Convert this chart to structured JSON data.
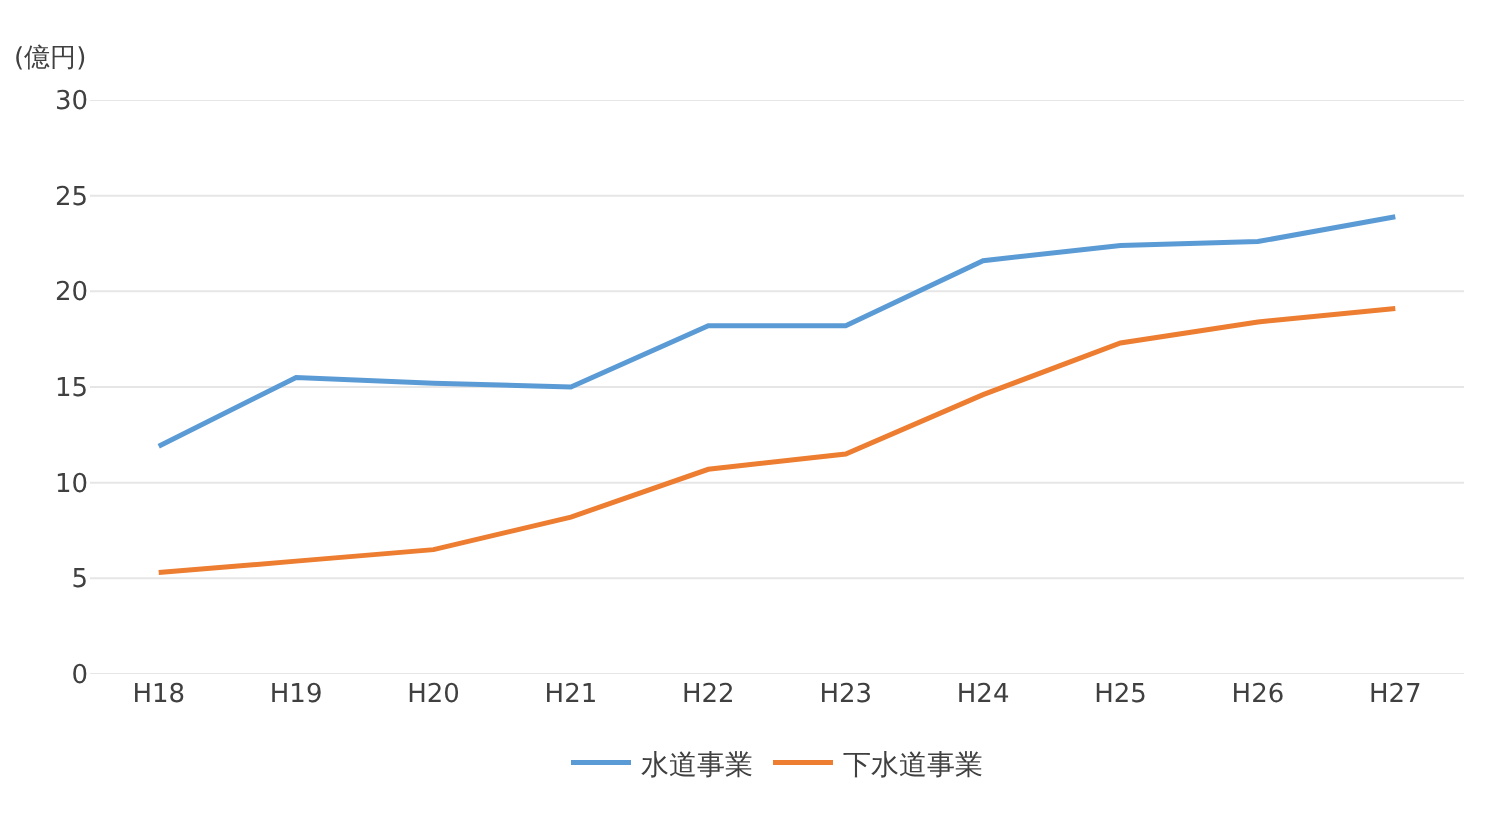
{
  "chart_data": {
    "type": "line",
    "ylabel": "(億円)",
    "categories": [
      "H18",
      "H19",
      "H20",
      "H21",
      "H22",
      "H23",
      "H24",
      "H25",
      "H26",
      "H27"
    ],
    "series": [
      {
        "name": "水道事業",
        "color": "#5b9bd5",
        "values": [
          11.9,
          15.5,
          15.2,
          15.0,
          18.2,
          18.2,
          21.6,
          22.4,
          22.6,
          23.9
        ]
      },
      {
        "name": "下水道事業",
        "color": "#ed7d31",
        "values": [
          5.3,
          5.9,
          6.5,
          8.2,
          10.7,
          11.5,
          14.6,
          17.3,
          18.4,
          19.1
        ]
      }
    ],
    "ylim": [
      0,
      30
    ],
    "yticks": [
      0,
      5,
      10,
      15,
      20,
      25,
      30
    ],
    "grid": "y",
    "legend": "bottom",
    "marker": "none",
    "line_style": "solid"
  }
}
